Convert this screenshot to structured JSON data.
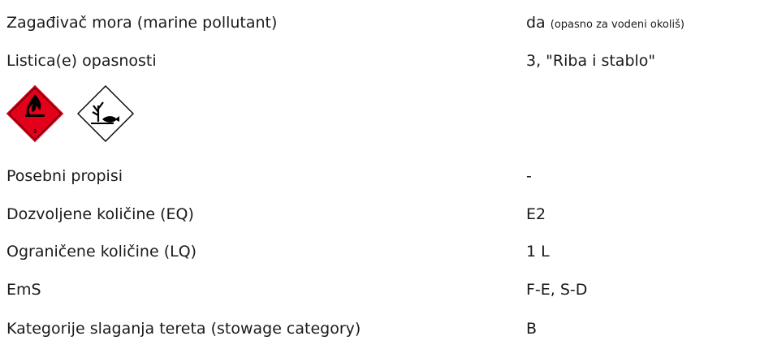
{
  "rows": [
    {
      "label": "Zagađivač mora (marine pollutant)",
      "value": "da",
      "note": "(opasno za vodeni okoliš)"
    },
    {
      "label": "Listica(e) opasnosti",
      "value": "3, \"Riba i stablo\""
    },
    {
      "label": "Posebni propisi",
      "value": "-"
    },
    {
      "label": "Dozvoljene količine (EQ)",
      "value": "E2"
    },
    {
      "label": "Ograničene količine (LQ)",
      "value": "1 L"
    },
    {
      "label": "EmS",
      "value": "F-E, S-D"
    },
    {
      "label": "Kategorije slaganja tereta (stowage category)",
      "value": "B"
    }
  ],
  "pictogram_class": "3"
}
